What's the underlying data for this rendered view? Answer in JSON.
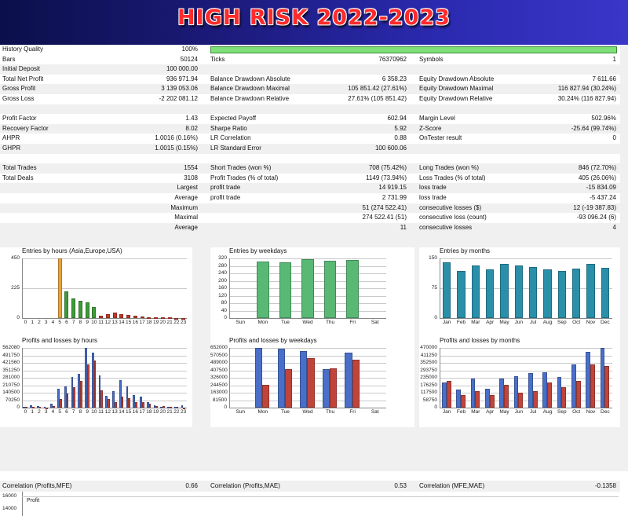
{
  "banner": {
    "title": "HIGH RISK 2022-2023"
  },
  "stats": {
    "history_quality": {
      "label": "History Quality",
      "value": "100%",
      "fraction": 1.0
    },
    "rows": [
      {
        "l1": "Bars",
        "v1": "50124",
        "l2": "Ticks",
        "v2": "76370962",
        "l3": "Symbols",
        "v3": "1"
      },
      {
        "l1": "Initial Deposit",
        "v1": "100 000.00",
        "l2": "",
        "v2": "",
        "l3": "",
        "v3": ""
      },
      {
        "l1": "Total Net Profit",
        "v1": "936 971.94",
        "l2": "Balance Drawdown Absolute",
        "v2": "6 358.23",
        "l3": "Equity Drawdown Absolute",
        "v3": "7 611.66"
      },
      {
        "l1": "Gross Profit",
        "v1": "3 139 053.06",
        "l2": "Balance Drawdown Maximal",
        "v2": "105 851.42 (27.61%)",
        "l3": "Equity Drawdown Maximal",
        "v3": "116 827.94 (30.24%)"
      },
      {
        "l1": "Gross Loss",
        "v1": "-2 202 081.12",
        "l2": "Balance Drawdown Relative",
        "v2": "27.61% (105 851.42)",
        "l3": "Equity Drawdown Relative",
        "v3": "30.24% (116 827.94)"
      },
      {
        "l1": "",
        "v1": "",
        "l2": "",
        "v2": "",
        "l3": "",
        "v3": ""
      },
      {
        "l1": "Profit Factor",
        "v1": "1.43",
        "l2": "Expected Payoff",
        "v2": "602.94",
        "l3": "Margin Level",
        "v3": "502.96%"
      },
      {
        "l1": "Recovery Factor",
        "v1": "8.02",
        "l2": "Sharpe Ratio",
        "v2": "5.92",
        "l3": "Z-Score",
        "v3": "-25.64 (99.74%)"
      },
      {
        "l1": "AHPR",
        "v1": "1.0016 (0.16%)",
        "l2": "LR Correlation",
        "v2": "0.88",
        "l3": "OnTester result",
        "v3": "0"
      },
      {
        "l1": "GHPR",
        "v1": "1.0015 (0.15%)",
        "l2": "LR Standard Error",
        "v2": "100 600.06",
        "l3": "",
        "v3": ""
      },
      {
        "l1": "",
        "v1": "",
        "l2": "",
        "v2": "",
        "l3": "",
        "v3": ""
      },
      {
        "l1": "Total Trades",
        "v1": "1554",
        "l2": "Short Trades (won %)",
        "v2": "708 (75.42%)",
        "l3": "Long Trades (won %)",
        "v3": "846 (72.70%)"
      },
      {
        "l1": "Total Deals",
        "v1": "3108",
        "l2": "Profit Trades (% of total)",
        "v2": "1149 (73.94%)",
        "l3": "Loss Trades (% of total)",
        "v3": "405 (26.06%)"
      },
      {
        "r1": "Largest",
        "l2": "profit trade",
        "v2": "14 919.15",
        "l3": "loss trade",
        "v3": "-15 834.09"
      },
      {
        "r1": "Average",
        "l2": "profit trade",
        "v2": "2 731.99",
        "l3": "loss trade",
        "v3": "-5 437.24"
      },
      {
        "r1": "Maximum",
        "l2": "",
        "v2": "51 (274 522.41)",
        "l3": "consecutive losses ($)",
        "v3": "12 (-19 387.83)"
      },
      {
        "r1": "Maximal",
        "l2": "",
        "v2": "274 522.41 (51)",
        "l3": "consecutive loss (count)",
        "v3": "-93 096.24 (6)"
      },
      {
        "r1": "Average",
        "l2": "",
        "v2": "11",
        "l3": "consecutive losses",
        "v3": "4"
      }
    ]
  },
  "colors": {
    "hours_orange": "#e8a23a",
    "hours_green": "#3f9b3a",
    "hours_red": "#c0392b",
    "weekday_green": "#58b874",
    "month_teal": "#2a8fa8",
    "profit_blue": "#4a6fc9",
    "loss_red": "#c0443a"
  },
  "chart_data": [
    {
      "type": "bar",
      "title": "Entries by hours (Asia,Europe,USA)",
      "categories": [
        "0",
        "1",
        "2",
        "3",
        "4",
        "5",
        "6",
        "7",
        "8",
        "9",
        "10",
        "11",
        "12",
        "13",
        "14",
        "15",
        "16",
        "17",
        "18",
        "19",
        "20",
        "21",
        "22",
        "23"
      ],
      "values": [
        0,
        0,
        0,
        0,
        0,
        450,
        200,
        150,
        130,
        120,
        80,
        20,
        30,
        40,
        30,
        25,
        20,
        10,
        8,
        6,
        4,
        3,
        2,
        1
      ],
      "ylim": [
        0,
        450
      ],
      "yticks": [
        "450",
        "225",
        "0"
      ]
    },
    {
      "type": "bar",
      "title": "Entries by weekdays",
      "categories": [
        "Sun",
        "Mon",
        "Tue",
        "Wed",
        "Thu",
        "Fri",
        "Sat"
      ],
      "values": [
        0,
        305,
        300,
        315,
        308,
        310,
        0
      ],
      "ylim": [
        0,
        320
      ],
      "yticks": [
        "320",
        "280",
        "240",
        "200",
        "160",
        "120",
        "80",
        "40",
        "0"
      ]
    },
    {
      "type": "bar",
      "title": "Entries by months",
      "categories": [
        "Jan",
        "Feb",
        "Mar",
        "Apr",
        "May",
        "Jun",
        "Jul",
        "Aug",
        "Sep",
        "Oct",
        "Nov",
        "Dec"
      ],
      "values": [
        140,
        118,
        133,
        122,
        137,
        132,
        128,
        122,
        118,
        124,
        136,
        126
      ],
      "ylim": [
        0,
        150
      ],
      "yticks": [
        "150",
        "75",
        "0"
      ]
    },
    {
      "type": "bar",
      "title": "Profits and losses by hours",
      "categories": [
        "0",
        "1",
        "2",
        "3",
        "4",
        "5",
        "6",
        "7",
        "8",
        "9",
        "10",
        "11",
        "12",
        "13",
        "14",
        "15",
        "16",
        "17",
        "18",
        "19",
        "20",
        "21",
        "22",
        "23"
      ],
      "series": [
        {
          "values": [
            10000,
            20000,
            15000,
            5000,
            40000,
            180000,
            200000,
            290000,
            320000,
            562000,
            520000,
            300000,
            110000,
            155000,
            260000,
            200000,
            120000,
            100000,
            50000,
            20000,
            10000,
            5000,
            10000,
            25000
          ]
        },
        {
          "values": [
            5000,
            8000,
            10000,
            2000,
            15000,
            80000,
            130000,
            190000,
            250000,
            410000,
            440000,
            160000,
            80000,
            50000,
            100000,
            90000,
            55000,
            50000,
            40000,
            15000,
            12000,
            10000,
            6000,
            2000
          ]
        }
      ],
      "ylim": [
        0,
        562000
      ],
      "yticks": [
        "562080",
        "491750",
        "421560",
        "351250",
        "281000",
        "210750",
        "140500",
        "70250",
        "0"
      ]
    },
    {
      "type": "bar",
      "title": "Profits and losses by weekdays",
      "categories": [
        "Sun",
        "Mon",
        "Tue",
        "Wed",
        "Thu",
        "Fri",
        "Sat"
      ],
      "series": [
        {
          "values": [
            0,
            652000,
            640000,
            620000,
            420000,
            600000,
            0
          ]
        },
        {
          "values": [
            0,
            250000,
            420000,
            540000,
            430000,
            520000,
            0
          ]
        }
      ],
      "ylim": [
        0,
        652000
      ],
      "yticks": [
        "652000",
        "570500",
        "489000",
        "407500",
        "326000",
        "244500",
        "163000",
        "81500",
        "0"
      ]
    },
    {
      "type": "bar",
      "title": "Profits and losses by months",
      "categories": [
        "Jan",
        "Feb",
        "Mar",
        "Apr",
        "May",
        "Jun",
        "Jul",
        "Aug",
        "Sep",
        "Oct",
        "Nov",
        "Dec"
      ],
      "series": [
        {
          "values": [
            200000,
            140000,
            230000,
            150000,
            230000,
            250000,
            270000,
            280000,
            240000,
            340000,
            440000,
            470000
          ]
        },
        {
          "values": [
            210000,
            100000,
            130000,
            100000,
            180000,
            120000,
            130000,
            200000,
            160000,
            210000,
            340000,
            330000
          ]
        }
      ],
      "ylim": [
        0,
        470000
      ],
      "yticks": [
        "470000",
        "411250",
        "352500",
        "293750",
        "235000",
        "176250",
        "117500",
        "58750",
        "0"
      ]
    }
  ],
  "correlation": [
    {
      "label": "Correlation (Profits,MFE)",
      "value": "0.66"
    },
    {
      "label": "Correlation (Profits,MAE)",
      "value": "0.53"
    },
    {
      "label": "Correlation (MFE,MAE)",
      "value": "-0.1358"
    }
  ],
  "balance": {
    "ytick": "16000",
    "ytick2": "14000",
    "label": "Profit"
  }
}
